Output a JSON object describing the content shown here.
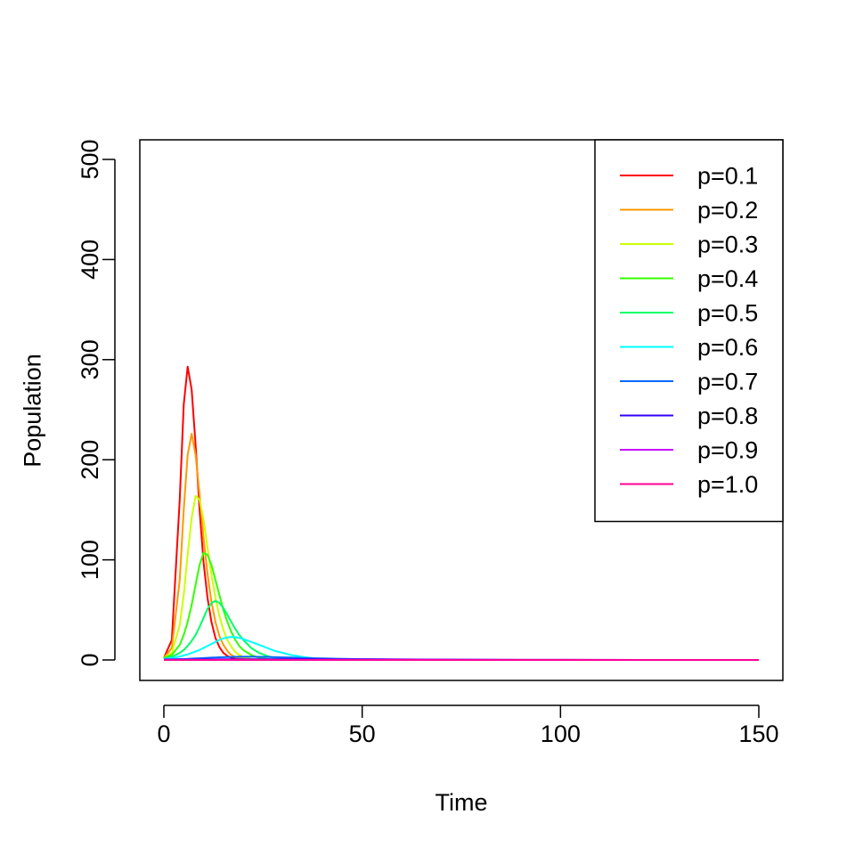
{
  "chart_data": {
    "type": "line",
    "title": "",
    "xlabel": "Time",
    "ylabel": "Population",
    "xlim": [
      0,
      150
    ],
    "ylim": [
      0,
      500
    ],
    "x_ticks": [
      "0",
      "50",
      "100",
      "150"
    ],
    "y_ticks": [
      "0",
      "100",
      "200",
      "300",
      "400",
      "500"
    ],
    "grid": false,
    "legend_position": "top-right",
    "x": [
      0,
      2,
      4,
      5,
      6,
      7,
      8,
      9,
      10,
      11,
      12,
      13,
      14,
      15,
      16,
      17,
      18,
      19,
      20,
      22,
      24,
      26,
      28,
      30,
      32,
      35,
      38,
      40,
      45,
      50,
      55,
      60,
      70,
      80,
      90,
      100,
      120,
      150
    ],
    "series": [
      {
        "name": "p=0.1",
        "color": "#ff0000",
        "values": [
          2,
          20,
          160,
          255,
          293,
          270,
          215,
          150,
          98,
          62,
          38,
          22,
          13,
          7,
          4,
          2,
          1,
          0.5,
          0.3,
          0,
          0,
          0,
          0,
          0,
          0,
          0,
          0,
          0,
          0,
          0,
          0,
          0,
          0,
          0,
          0,
          0,
          0,
          0
        ]
      },
      {
        "name": "p=0.2",
        "color": "#ff9900",
        "values": [
          2,
          12,
          80,
          150,
          205,
          226,
          205,
          165,
          122,
          86,
          58,
          38,
          24,
          15,
          9,
          5,
          3,
          2,
          1,
          0.3,
          0,
          0,
          0,
          0,
          0,
          0,
          0,
          0,
          0,
          0,
          0,
          0,
          0,
          0,
          0,
          0,
          0,
          0
        ]
      },
      {
        "name": "p=0.3",
        "color": "#ccff00",
        "values": [
          2,
          7,
          35,
          65,
          105,
          142,
          164,
          160,
          140,
          112,
          85,
          62,
          44,
          30,
          20,
          13,
          8,
          5,
          3,
          1,
          0.4,
          0,
          0,
          0,
          0,
          0,
          0,
          0,
          0,
          0,
          0,
          0,
          0,
          0,
          0,
          0,
          0,
          0
        ]
      },
      {
        "name": "p=0.4",
        "color": "#33ff00",
        "values": [
          2,
          5,
          15,
          25,
          38,
          55,
          75,
          95,
          107,
          105,
          95,
          80,
          65,
          50,
          38,
          28,
          20,
          14,
          10,
          5,
          2,
          1,
          0.4,
          0,
          0,
          0,
          0,
          0,
          0,
          0,
          0,
          0,
          0,
          0,
          0,
          0,
          0,
          0
        ]
      },
      {
        "name": "p=0.5",
        "color": "#00ff66",
        "values": [
          1,
          3,
          7,
          10,
          14,
          19,
          25,
          33,
          42,
          51,
          57,
          59,
          57,
          52,
          45,
          38,
          31,
          25,
          20,
          12,
          7,
          4,
          2,
          1,
          0.5,
          0,
          0,
          0,
          0,
          0,
          0,
          0,
          0,
          0,
          0,
          0,
          0,
          0
        ]
      },
      {
        "name": "p=0.6",
        "color": "#00ffff",
        "values": [
          1,
          2,
          3.5,
          4.5,
          5.5,
          7,
          8.5,
          10,
          12,
          14,
          16,
          18,
          20,
          21.5,
          22.5,
          23,
          22.8,
          22,
          21,
          18,
          15,
          12,
          9,
          7,
          5,
          3,
          1.5,
          1,
          0.5,
          0.2,
          0,
          0,
          0,
          0,
          0,
          0,
          0,
          0
        ]
      },
      {
        "name": "p=0.7",
        "color": "#0066ff",
        "values": [
          0.5,
          0.7,
          0.9,
          1,
          1.1,
          1.3,
          1.5,
          1.7,
          1.9,
          2.1,
          2.3,
          2.5,
          2.7,
          2.8,
          2.9,
          3,
          3.1,
          3.2,
          3.2,
          3.2,
          3.1,
          3,
          2.8,
          2.6,
          2.4,
          2,
          1.7,
          1.5,
          1.1,
          0.8,
          0.5,
          0.35,
          0.15,
          0.05,
          0,
          0,
          0,
          0
        ]
      },
      {
        "name": "p=0.8",
        "color": "#3300ff",
        "values": [
          0.3,
          0.3,
          0.35,
          0.35,
          0.4,
          0.4,
          0.45,
          0.45,
          0.5,
          0.5,
          0.55,
          0.55,
          0.6,
          0.6,
          0.6,
          0.65,
          0.65,
          0.7,
          0.7,
          0.7,
          0.75,
          0.75,
          0.75,
          0.8,
          0.8,
          0.8,
          0.8,
          0.8,
          0.75,
          0.7,
          0.6,
          0.5,
          0.35,
          0.2,
          0.1,
          0.05,
          0,
          0
        ]
      },
      {
        "name": "p=0.9",
        "color": "#cc00ff",
        "values": [
          0.2,
          0.2,
          0.2,
          0.2,
          0.2,
          0.2,
          0.2,
          0.2,
          0.2,
          0.2,
          0.2,
          0.2,
          0.2,
          0.2,
          0.2,
          0.2,
          0.2,
          0.2,
          0.2,
          0.2,
          0.2,
          0.2,
          0.2,
          0.2,
          0.2,
          0.2,
          0.2,
          0.2,
          0.2,
          0.2,
          0.2,
          0.2,
          0.15,
          0.1,
          0.1,
          0.05,
          0,
          0
        ]
      },
      {
        "name": "p=1.0",
        "color": "#ff0099",
        "values": [
          0,
          0,
          0,
          0,
          0,
          0,
          0,
          0,
          0,
          0,
          0,
          0,
          0,
          0,
          0,
          0,
          0,
          0,
          0,
          0,
          0,
          0,
          0,
          0,
          0,
          0,
          0,
          0,
          0,
          0,
          0,
          0,
          0,
          0,
          0,
          0,
          0,
          0
        ]
      }
    ]
  }
}
